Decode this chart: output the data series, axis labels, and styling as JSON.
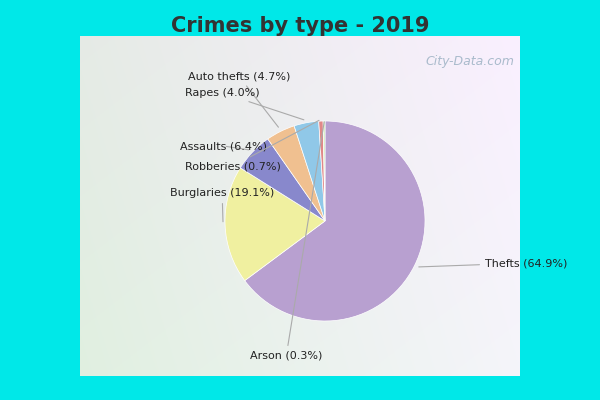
{
  "title": "Crimes by type - 2019",
  "labels": [
    "Thefts",
    "Burglaries",
    "Assaults",
    "Auto thefts",
    "Rapes",
    "Robberies",
    "Arson"
  ],
  "percentages": [
    64.9,
    19.1,
    6.4,
    4.7,
    4.0,
    0.7,
    0.3
  ],
  "colors": [
    "#b8a0d0",
    "#f0f0a0",
    "#8888cc",
    "#f0c090",
    "#90c8e8",
    "#e08888",
    "#c8e8b0"
  ],
  "label_texts": [
    "Thefts (64.9%)",
    "Burglaries (19.1%)",
    "Assaults (6.4%)",
    "Auto thefts (4.7%)",
    "Rapes (4.0%)",
    "Robberies (0.7%)",
    "Arson (0.3%)"
  ],
  "bg_color_cyan": "#00e8e8",
  "title_fontsize": 15,
  "title_fontweight": "bold",
  "title_color": "#333333",
  "label_fontsize": 8,
  "label_color": "#222222",
  "watermark_text": "City-Data.com",
  "watermark_color": "#aabbcc",
  "watermark_fontsize": 9
}
